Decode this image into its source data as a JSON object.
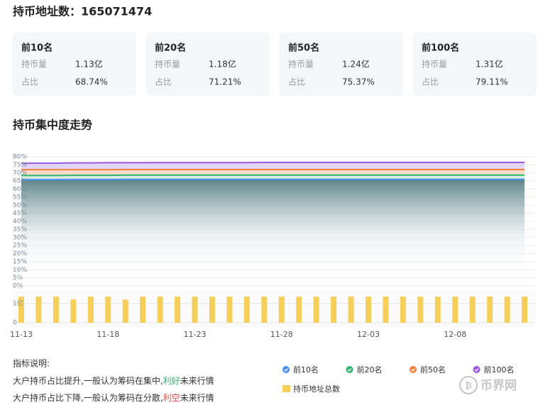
{
  "header": {
    "title": "持币地址数：165071474"
  },
  "cards": [
    {
      "title": "前10名",
      "rows": [
        {
          "label": "持币量",
          "value": "1.13亿"
        },
        {
          "label": "占比",
          "value": "68.74%"
        }
      ]
    },
    {
      "title": "前20名",
      "rows": [
        {
          "label": "持币量",
          "value": "1.18亿"
        },
        {
          "label": "占比",
          "value": "71.21%"
        }
      ]
    },
    {
      "title": "前50名",
      "rows": [
        {
          "label": "持币量",
          "value": "1.24亿"
        },
        {
          "label": "占比",
          "value": "75.37%"
        }
      ]
    },
    {
      "title": "前100名",
      "rows": [
        {
          "label": "持币量",
          "value": "1.31亿"
        },
        {
          "label": "占比",
          "value": "79.11%"
        }
      ]
    }
  ],
  "section_title": "持币集中度走势",
  "chart_data": {
    "type": "line",
    "categories": [
      "11-13",
      null,
      null,
      null,
      null,
      "11-18",
      null,
      null,
      null,
      null,
      "11-23",
      null,
      null,
      null,
      null,
      "11-28",
      null,
      null,
      null,
      null,
      "12-03",
      null,
      null,
      null,
      null,
      "12-08",
      null,
      null,
      null,
      null
    ],
    "series": [
      {
        "name": "前10名",
        "color": "#4a8ef0",
        "values": [
          65.8,
          65.8,
          65.8,
          65.9,
          65.9,
          65.9,
          66,
          66,
          66,
          66,
          66,
          66,
          66,
          66,
          66,
          66,
          66,
          66,
          66,
          66,
          66,
          66,
          66,
          66,
          66,
          66,
          66,
          66,
          66,
          66
        ]
      },
      {
        "name": "前20名",
        "color": "#2fb46c",
        "values": [
          68.4,
          68.4,
          68.4,
          68.5,
          68.5,
          68.5,
          68.6,
          68.6,
          68.6,
          68.6,
          68.6,
          68.6,
          68.6,
          68.6,
          68.6,
          68.6,
          68.6,
          68.6,
          68.6,
          68.6,
          68.6,
          68.6,
          68.6,
          68.6,
          68.6,
          68.6,
          68.6,
          68.6,
          68.6,
          68.6
        ]
      },
      {
        "name": "前50名",
        "color": "#f47f3b",
        "values": [
          72,
          72,
          72,
          72,
          72,
          72,
          72.1,
          72.1,
          72.1,
          72.1,
          72.1,
          72.1,
          72.1,
          72.1,
          72.1,
          72.1,
          72.1,
          72.1,
          72.1,
          72.1,
          72.1,
          72.1,
          72.1,
          72.1,
          72.1,
          72.1,
          72.1,
          72.1,
          72.1,
          72.1
        ]
      },
      {
        "name": "前100名",
        "color": "#9b59e0",
        "values": [
          76,
          76,
          76,
          76.2,
          76.2,
          76.3,
          76.3,
          76.3,
          76.4,
          76.4,
          76.4,
          76.4,
          76.4,
          76.4,
          76.5,
          76.5,
          76.5,
          76.5,
          76.5,
          76.5,
          76.5,
          76.5,
          76.5,
          76.5,
          76.5,
          76.5,
          76.5,
          76.5,
          76.5,
          76.5
        ]
      },
      {
        "name": "持币地址总数",
        "type": "bar",
        "axis": "y2",
        "color": "#f5cf5a",
        "values": [
          137000000,
          137000000,
          137000000,
          122000000,
          137000000,
          137000000,
          122000000,
          137000000,
          137000000,
          137000000,
          137000000,
          137000000,
          137000000,
          137000000,
          137000000,
          137000000,
          137000000,
          137000000,
          137000000,
          137000000,
          137000000,
          137000000,
          137000000,
          137000000,
          137000000,
          137000000,
          137000000,
          137000000,
          137000000,
          137000000
        ]
      }
    ],
    "ylim": [
      0,
      80
    ],
    "yticks": [
      {
        "value": 0,
        "label": "0%"
      },
      {
        "value": 5,
        "label": "5%"
      },
      {
        "value": 10,
        "label": "10%"
      },
      {
        "value": 15,
        "label": "15%"
      },
      {
        "value": 20,
        "label": "20%"
      },
      {
        "value": 25,
        "label": "25%"
      },
      {
        "value": 30,
        "label": "30%"
      },
      {
        "value": 35,
        "label": "35%"
      },
      {
        "value": 40,
        "label": "40%"
      },
      {
        "value": 45,
        "label": "45%"
      },
      {
        "value": 50,
        "label": "50%"
      },
      {
        "value": 55,
        "label": "55%"
      },
      {
        "value": 60,
        "label": "60%"
      },
      {
        "value": 65,
        "label": "65%"
      },
      {
        "value": 70,
        "label": "70%"
      },
      {
        "value": 75,
        "label": "75%"
      },
      {
        "value": 80,
        "label": "80%"
      }
    ],
    "y2lim": [
      0,
      160000000
    ],
    "y2ticks": [
      0,
      {
        "value": 100000000,
        "label": "1亿"
      }
    ],
    "grid": true
  },
  "notes": {
    "title": "指标说明:",
    "lines": [
      [
        "大户持币占比提升,一般认为筹码在集中,",
        "利好",
        "未来行情"
      ],
      [
        "大户持币占比下降,一般认为筹码在分散,",
        "利空",
        "未来行情"
      ]
    ]
  },
  "watermark": "币界网"
}
